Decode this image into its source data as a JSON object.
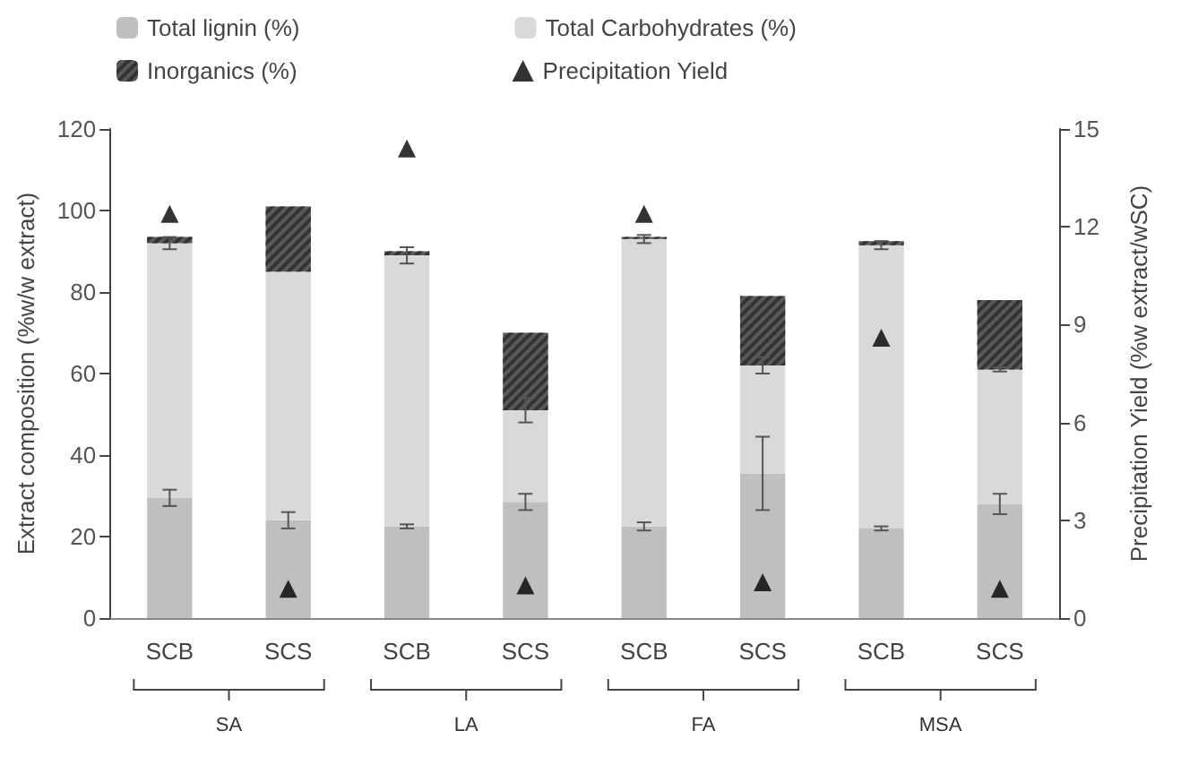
{
  "chart_data": {
    "type": "bar",
    "stacked": true,
    "categories": [
      "SCB",
      "SCS",
      "SCB",
      "SCS",
      "SCB",
      "SCS",
      "SCB",
      "SCS"
    ],
    "series": [
      {
        "name": "Total lignin (%)",
        "color": "#bfbfbf",
        "values": [
          29.5,
          24,
          22.5,
          28.5,
          22.5,
          35.5,
          22,
          28
        ],
        "errors": [
          2,
          2,
          0.5,
          2,
          1,
          9,
          0.5,
          2.5
        ]
      },
      {
        "name": "Total Carbohydrates (%)",
        "color": "#d9d9d9",
        "values": [
          62.5,
          61,
          66.5,
          22.5,
          70.5,
          26.5,
          69.5,
          33
        ],
        "errors": [
          1.5,
          null,
          2,
          3,
          1,
          2,
          1,
          0.5
        ]
      },
      {
        "name": "Inorganics (%)",
        "color": "#595959",
        "values": [
          1.5,
          16,
          1,
          19,
          0.5,
          17,
          1,
          17
        ]
      },
      {
        "name": "Precipitation Yield",
        "type": "scatter",
        "axis": "y2",
        "marker": "triangle",
        "color": "#000000",
        "values": [
          12.4,
          0.9,
          14.4,
          1.0,
          12.4,
          1.1,
          8.6,
          0.9
        ]
      }
    ],
    "ylabel": "Extract composition (%w/w extract)",
    "y2label": "Precipitation Yield (%w extract/wSC)",
    "ylim": [
      0,
      120
    ],
    "yticks": [
      0,
      20,
      40,
      60,
      80,
      100,
      120
    ],
    "y2lim": [
      0,
      15
    ],
    "y2ticks": [
      0,
      3,
      6,
      9,
      12,
      15
    ],
    "annotations": [
      "SA",
      "LA",
      "FA",
      "MSA"
    ],
    "grid": false,
    "legend": "top"
  }
}
